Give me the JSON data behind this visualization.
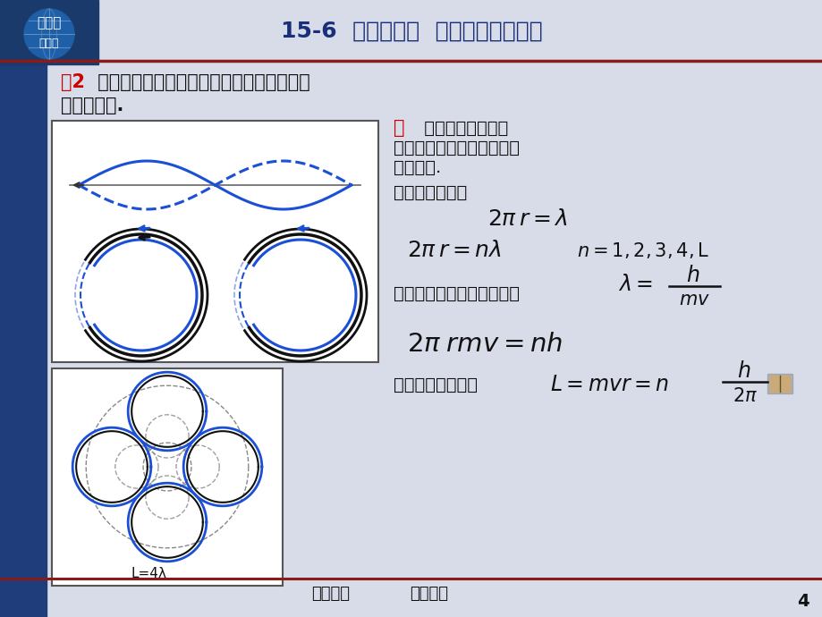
{
  "title": "15-6  德布罗意波  实物粒子的二象性",
  "subtitle_top": "物理学",
  "subtitle_bot": "第五版",
  "example_label": "例2",
  "example_text1": " 从德布罗意波导出氢原子波尔理论中角动量",
  "example_text2": "量子化条件.",
  "sol_label": "解",
  "sol_text1": " 两端固定的弦，若",
  "sol_text2": "其长度等于波长则可形成稳",
  "sol_text3": "定的驻波.",
  "text_bend": "将弦弯曲成圆时",
  "text_de": "电子绕核运动德布罗意波长",
  "text_angular": "角动量量子化条件",
  "footer_left": "第十五章",
  "footer_right": "量子物理",
  "page_num": "4",
  "label_L4": "L=4λ",
  "slide_bg": "#d8dce8",
  "left_bar": "#1e3d7a",
  "title_color": "#1a2f7a",
  "red_color": "#cc0000",
  "body_color": "#111111",
  "blue_color": "#1a4fd6",
  "dark_color": "#111111",
  "footer_line": "#8b1a1a",
  "box_bg": "#ffffff",
  "box_edge": "#555555",
  "globe_bg": "#1a3a6b",
  "globe_circle": "#1e5fa8"
}
